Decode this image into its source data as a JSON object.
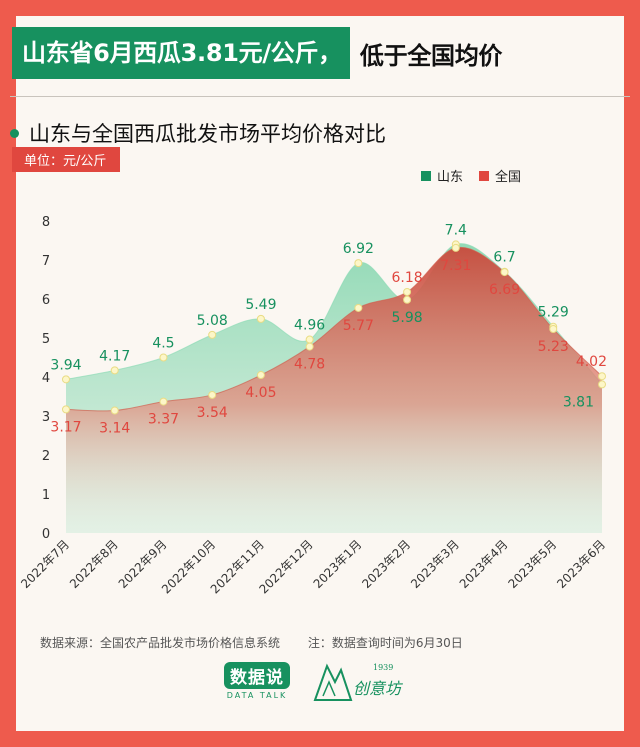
{
  "header": {
    "title_highlight": "山东省6月西瓜3.81元/公斤，",
    "title_rest": "低于全国均价"
  },
  "subtitle": "山东与全国西瓜批发市场平均价格对比",
  "unit_label": "单位：元/公斤",
  "footer": {
    "source": "数据来源：全国农产品批发市场价格信息系统",
    "note": "注：数据查询时间为6月30日"
  },
  "logos": {
    "datatalk_main": "数据说",
    "datatalk_sub": "DATA TALK",
    "chuangyi_year": "1939",
    "chuangyi_name": "创意坊"
  },
  "colors": {
    "shandong": "#17915f",
    "national": "#e0473f",
    "background": "#ee5b4d"
  },
  "chart_data": {
    "type": "area",
    "categories": [
      "2022年7月",
      "2022年8月",
      "2022年9月",
      "2022年10月",
      "2022年11月",
      "2022年12月",
      "2023年1月",
      "2023年2月",
      "2023年3月",
      "2023年4月",
      "2023年5月",
      "2023年6月"
    ],
    "ylim": [
      0,
      8
    ],
    "yticks": [
      0,
      1,
      2,
      3,
      4,
      5,
      6,
      7,
      8
    ],
    "grid": false,
    "legend_position": "top-right",
    "series": [
      {
        "name": "山东",
        "values": [
          3.94,
          4.17,
          4.5,
          5.08,
          5.49,
          4.96,
          6.92,
          5.98,
          7.4,
          6.7,
          5.29,
          3.81
        ]
      },
      {
        "name": "全国",
        "values": [
          3.17,
          3.14,
          3.37,
          3.54,
          4.05,
          4.78,
          5.77,
          6.18,
          7.31,
          6.69,
          5.23,
          4.02
        ]
      }
    ]
  }
}
